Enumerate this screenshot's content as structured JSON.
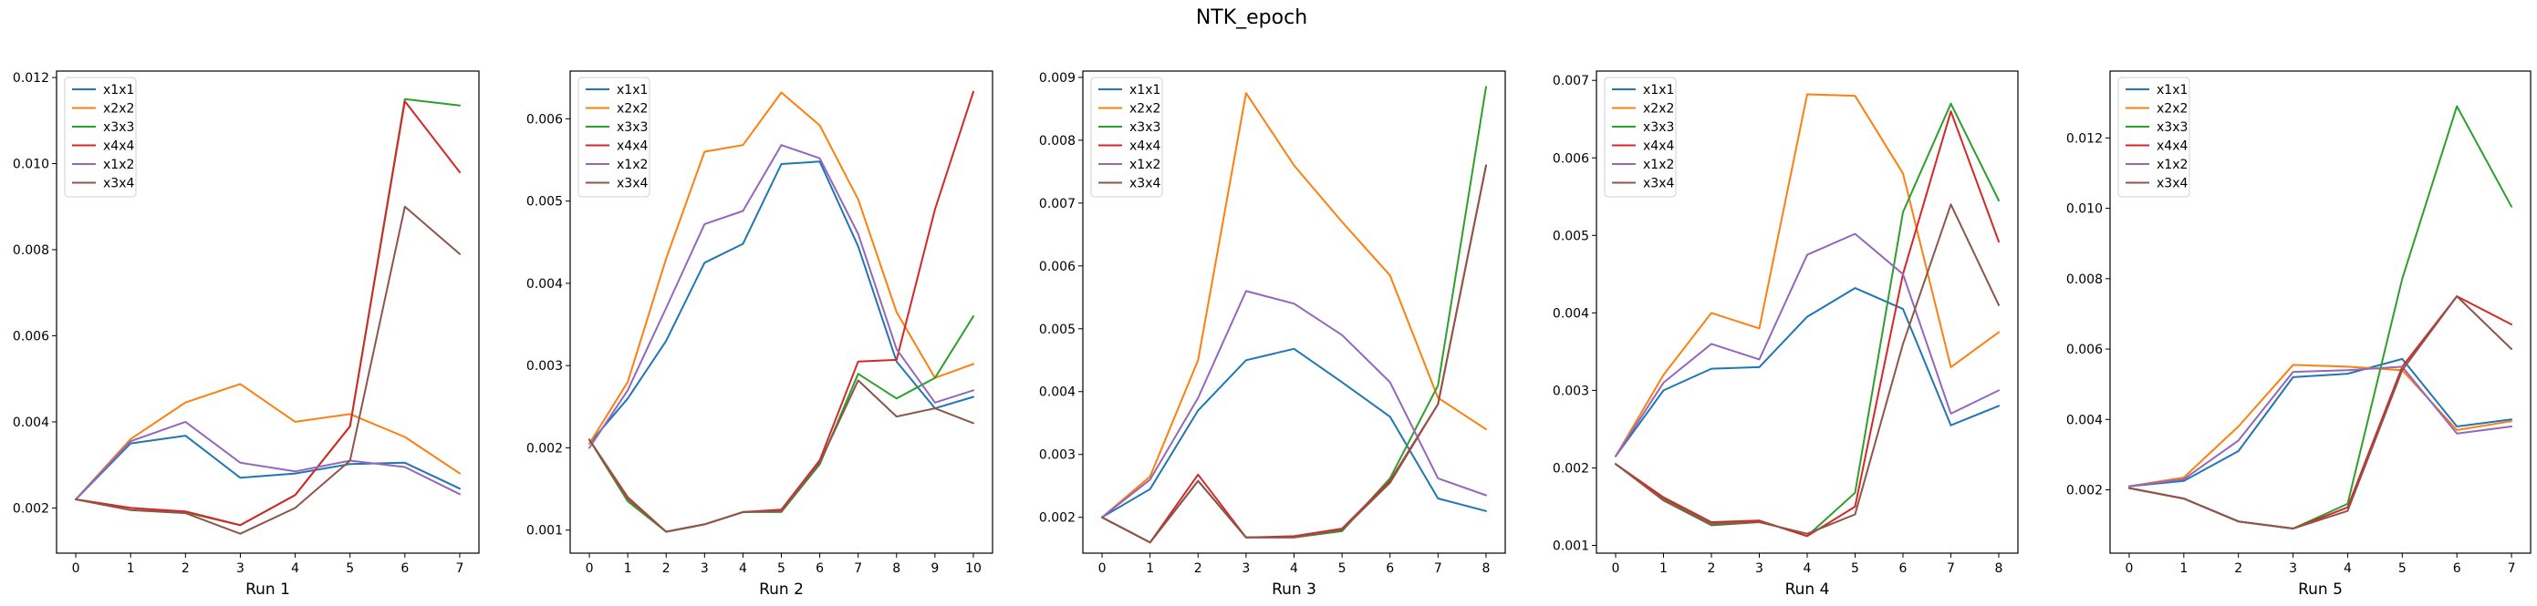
{
  "figure": {
    "suptitle": "NTK_epoch",
    "colors": [
      "#1f77b4",
      "#ff7f0e",
      "#2ca02c",
      "#d62728",
      "#9467bd",
      "#8c564b"
    ],
    "legend_position": "upper-left"
  },
  "chart_data": [
    {
      "type": "line",
      "title": "",
      "xlabel": "Run 1",
      "ylabel": "",
      "x": [
        0,
        1,
        2,
        3,
        4,
        5,
        6,
        7
      ],
      "xlim": [
        -0.35,
        7.35
      ],
      "ylim": [
        0.00095,
        0.01215
      ],
      "yticks": [
        0.002,
        0.004,
        0.006,
        0.008,
        0.01,
        0.012
      ],
      "ytick_labels": [
        "0.002",
        "0.004",
        "0.006",
        "0.008",
        "0.010",
        "0.012"
      ],
      "grid": false,
      "series": [
        {
          "name": "x1x1",
          "values": [
            0.0022,
            0.0035,
            0.00368,
            0.0027,
            0.0028,
            0.00302,
            0.00305,
            0.00245
          ]
        },
        {
          "name": "x2x2",
          "values": [
            0.0022,
            0.0036,
            0.00445,
            0.00488,
            0.004,
            0.00418,
            0.00365,
            0.0028
          ]
        },
        {
          "name": "x3x3",
          "values": [
            0.0022,
            0.002,
            0.0019,
            0.0016,
            0.0023,
            0.0039,
            0.0115,
            0.01135
          ]
        },
        {
          "name": "x4x4",
          "values": [
            0.0022,
            0.002,
            0.00192,
            0.0016,
            0.0023,
            0.0039,
            0.01145,
            0.0098
          ]
        },
        {
          "name": "x1x2",
          "values": [
            0.0022,
            0.00355,
            0.004,
            0.00305,
            0.00285,
            0.0031,
            0.00295,
            0.00232
          ]
        },
        {
          "name": "x3x4",
          "values": [
            0.0022,
            0.00195,
            0.00188,
            0.0014,
            0.002,
            0.0031,
            0.009,
            0.0079
          ]
        }
      ]
    },
    {
      "type": "line",
      "title": "",
      "xlabel": "Run 2",
      "ylabel": "",
      "x": [
        0,
        1,
        2,
        3,
        4,
        5,
        6,
        7,
        8,
        9,
        10
      ],
      "xlim": [
        -0.5,
        10.5
      ],
      "ylim": [
        0.00072,
        0.00658
      ],
      "yticks": [
        0.001,
        0.002,
        0.003,
        0.004,
        0.005,
        0.006
      ],
      "ytick_labels": [
        "0.001",
        "0.002",
        "0.003",
        "0.004",
        "0.005",
        "0.006"
      ],
      "grid": false,
      "series": [
        {
          "name": "x1x1",
          "values": [
            0.00205,
            0.0026,
            0.0033,
            0.00425,
            0.00448,
            0.00545,
            0.00548,
            0.00445,
            0.00305,
            0.00248,
            0.00262
          ]
        },
        {
          "name": "x2x2",
          "values": [
            0.00205,
            0.0028,
            0.0043,
            0.0056,
            0.00568,
            0.00632,
            0.00592,
            0.00502,
            0.00365,
            0.00285,
            0.00302
          ]
        },
        {
          "name": "x3x3",
          "values": [
            0.0021,
            0.00135,
            0.00098,
            0.00107,
            0.00122,
            0.00122,
            0.0018,
            0.0029,
            0.0026,
            0.00285,
            0.0036
          ]
        },
        {
          "name": "x4x4",
          "values": [
            0.0021,
            0.0014,
            0.00098,
            0.00107,
            0.00122,
            0.00125,
            0.00185,
            0.00305,
            0.00307,
            0.0049,
            0.00633
          ]
        },
        {
          "name": "x1x2",
          "values": [
            0.002,
            0.0027,
            0.0037,
            0.00472,
            0.00488,
            0.00568,
            0.00552,
            0.0046,
            0.0032,
            0.00255,
            0.0027
          ]
        },
        {
          "name": "x3x4",
          "values": [
            0.0021,
            0.00138,
            0.00098,
            0.00107,
            0.00122,
            0.00123,
            0.00182,
            0.00282,
            0.00238,
            0.00248,
            0.0023
          ]
        }
      ]
    },
    {
      "type": "line",
      "title": "",
      "xlabel": "Run 3",
      "ylabel": "",
      "x": [
        0,
        1,
        2,
        3,
        4,
        5,
        6,
        7,
        8
      ],
      "xlim": [
        -0.4,
        8.4
      ],
      "ylim": [
        0.00143,
        0.0091
      ],
      "yticks": [
        0.002,
        0.003,
        0.004,
        0.005,
        0.006,
        0.007,
        0.008,
        0.009
      ],
      "ytick_labels": [
        "0.002",
        "0.003",
        "0.004",
        "0.005",
        "0.006",
        "0.007",
        "0.008",
        "0.009"
      ],
      "grid": false,
      "series": [
        {
          "name": "x1x1",
          "values": [
            0.002,
            0.00245,
            0.0037,
            0.0045,
            0.00468,
            0.00415,
            0.0036,
            0.0023,
            0.0021
          ]
        },
        {
          "name": "x2x2",
          "values": [
            0.002,
            0.00265,
            0.0045,
            0.00875,
            0.0076,
            0.0067,
            0.00585,
            0.0039,
            0.0034
          ]
        },
        {
          "name": "x3x3",
          "values": [
            0.002,
            0.0016,
            0.00258,
            0.00168,
            0.00168,
            0.00178,
            0.00262,
            0.0041,
            0.00885
          ]
        },
        {
          "name": "x4x4",
          "values": [
            0.002,
            0.0016,
            0.00268,
            0.00168,
            0.0017,
            0.00182,
            0.00258,
            0.0038,
            0.0076
          ]
        },
        {
          "name": "x1x2",
          "values": [
            0.002,
            0.0026,
            0.0039,
            0.0056,
            0.0054,
            0.0049,
            0.00415,
            0.00262,
            0.00235
          ]
        },
        {
          "name": "x3x4",
          "values": [
            0.002,
            0.0016,
            0.00258,
            0.00168,
            0.00168,
            0.0018,
            0.00255,
            0.0038,
            0.0076
          ]
        }
      ]
    },
    {
      "type": "line",
      "title": "",
      "xlabel": "Run 4",
      "ylabel": "",
      "x": [
        0,
        1,
        2,
        3,
        4,
        5,
        6,
        7,
        8
      ],
      "xlim": [
        -0.4,
        8.4
      ],
      "ylim": [
        0.0009,
        0.00712
      ],
      "yticks": [
        0.001,
        0.002,
        0.003,
        0.004,
        0.005,
        0.006,
        0.007
      ],
      "ytick_labels": [
        "0.001",
        "0.002",
        "0.003",
        "0.004",
        "0.005",
        "0.006",
        "0.007"
      ],
      "grid": false,
      "series": [
        {
          "name": "x1x1",
          "values": [
            0.00215,
            0.003,
            0.00328,
            0.0033,
            0.00395,
            0.00432,
            0.00405,
            0.00255,
            0.0028
          ]
        },
        {
          "name": "x2x2",
          "values": [
            0.00215,
            0.0032,
            0.004,
            0.0038,
            0.00682,
            0.0068,
            0.0058,
            0.0033,
            0.00375
          ]
        },
        {
          "name": "x3x3",
          "values": [
            0.00205,
            0.0016,
            0.00128,
            0.00132,
            0.00112,
            0.00168,
            0.0053,
            0.0067,
            0.00545
          ]
        },
        {
          "name": "x4x4",
          "values": [
            0.00205,
            0.00162,
            0.0013,
            0.00132,
            0.00112,
            0.0015,
            0.0045,
            0.0066,
            0.00492
          ]
        },
        {
          "name": "x1x2",
          "values": [
            0.00215,
            0.0031,
            0.0036,
            0.0034,
            0.00475,
            0.00502,
            0.0045,
            0.0027,
            0.003
          ]
        },
        {
          "name": "x3x4",
          "values": [
            0.00205,
            0.00158,
            0.00126,
            0.0013,
            0.00115,
            0.0014,
            0.0036,
            0.0054,
            0.0041
          ]
        }
      ]
    },
    {
      "type": "line",
      "title": "",
      "xlabel": "Run 5",
      "ylabel": "",
      "x": [
        0,
        1,
        2,
        3,
        4,
        5,
        6,
        7
      ],
      "xlim": [
        -0.35,
        7.35
      ],
      "ylim": [
        0.0002,
        0.0139
      ],
      "yticks": [
        0.002,
        0.004,
        0.006,
        0.008,
        0.01,
        0.012
      ],
      "ytick_labels": [
        "0.002",
        "0.004",
        "0.006",
        "0.008",
        "0.010",
        "0.012"
      ],
      "grid": false,
      "series": [
        {
          "name": "x1x1",
          "values": [
            0.0021,
            0.00225,
            0.0031,
            0.0052,
            0.0053,
            0.00572,
            0.0038,
            0.004
          ]
        },
        {
          "name": "x2x2",
          "values": [
            0.0021,
            0.00235,
            0.0038,
            0.00555,
            0.0055,
            0.0054,
            0.0037,
            0.00395
          ]
        },
        {
          "name": "x3x3",
          "values": [
            0.00205,
            0.00175,
            0.0011,
            0.0009,
            0.0016,
            0.008,
            0.0129,
            0.01005
          ]
        },
        {
          "name": "x4x4",
          "values": [
            0.00205,
            0.00175,
            0.0011,
            0.0009,
            0.0015,
            0.0055,
            0.0075,
            0.0067
          ]
        },
        {
          "name": "x1x2",
          "values": [
            0.0021,
            0.0023,
            0.0034,
            0.00535,
            0.0054,
            0.0055,
            0.0036,
            0.0038
          ]
        },
        {
          "name": "x3x4",
          "values": [
            0.00205,
            0.00175,
            0.0011,
            0.0009,
            0.0014,
            0.0054,
            0.0075,
            0.006
          ]
        }
      ]
    }
  ]
}
